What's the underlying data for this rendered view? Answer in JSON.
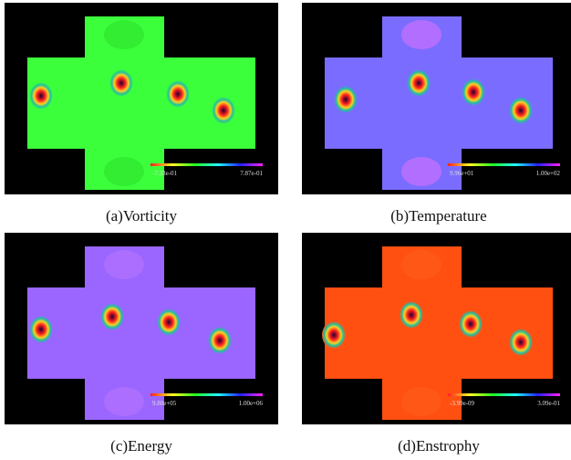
{
  "figure": {
    "panels": [
      {
        "caption": "(a)Vorticity",
        "colorbar": {
          "min": "-7.33e-01",
          "max": "7.87e-01"
        }
      },
      {
        "caption": "(b)Temperature",
        "colorbar": {
          "min": "9.96e+01",
          "max": "1.00e+02"
        }
      },
      {
        "caption": "(c)Energy",
        "colorbar": {
          "min": "9.88e+05",
          "max": "1.00e+06"
        }
      },
      {
        "caption": "(d)Enstrophy",
        "colorbar": {
          "min": "-3.99e-09",
          "max": "3.09e-01"
        }
      }
    ]
  }
}
